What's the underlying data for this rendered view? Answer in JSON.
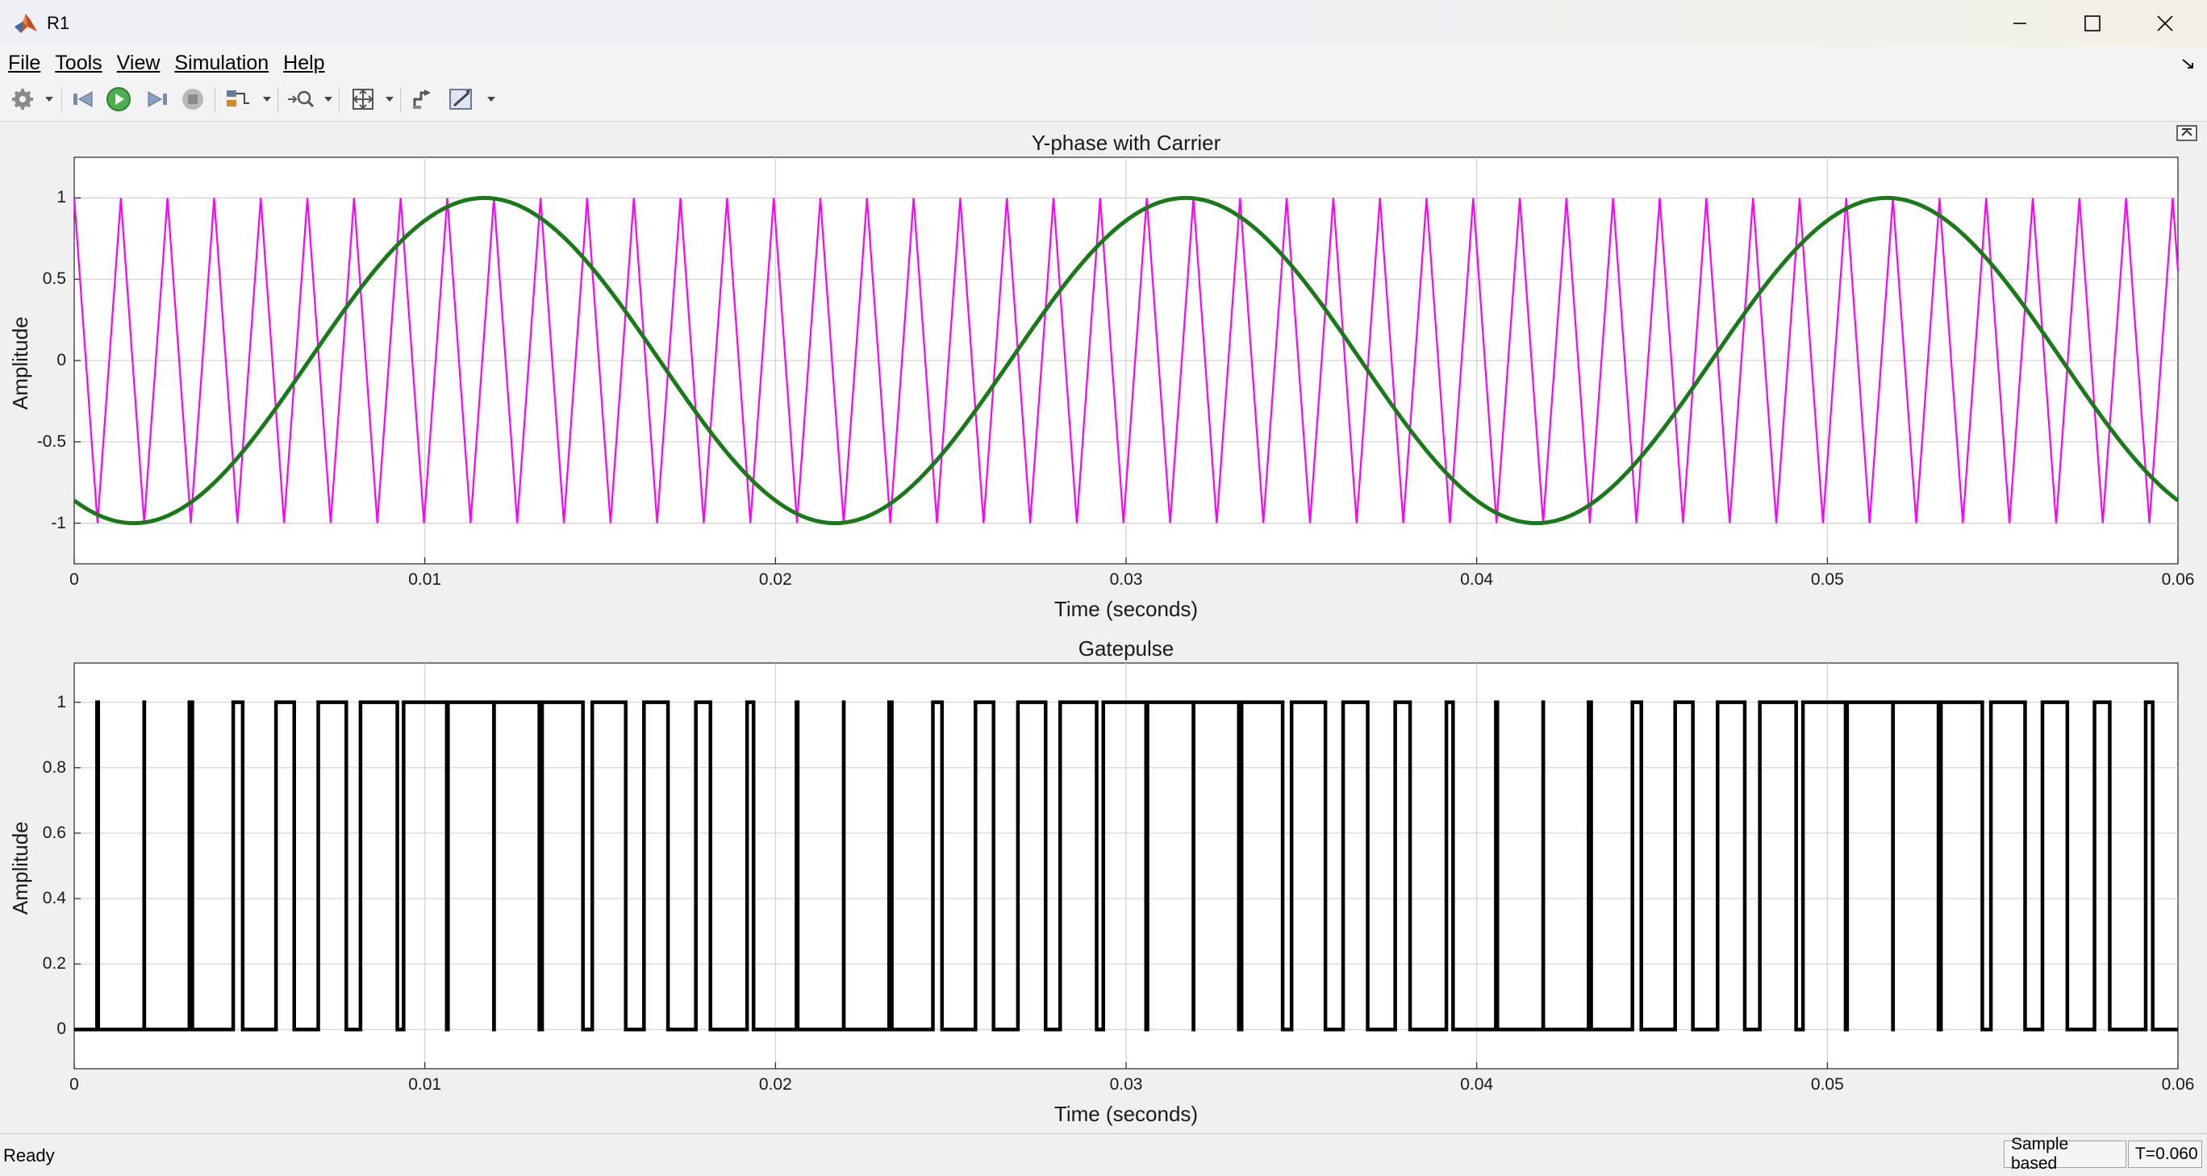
{
  "window": {
    "title": "R1"
  },
  "menu": [
    "File",
    "Tools",
    "View",
    "Simulation",
    "Help"
  ],
  "toolbar": {
    "icons": [
      "gear-icon",
      "step-back-icon",
      "run-icon",
      "step-forward-icon",
      "stop-icon",
      "signal-select-icon",
      "zoom-icon",
      "fit-axes-icon",
      "write-data-icon",
      "measure-icon"
    ]
  },
  "plots": [
    {
      "title": "Y-phase with Carrier",
      "xlabel": "Time (seconds)",
      "ylabel": "Amplitude",
      "xlim": [
        0,
        0.06
      ],
      "ylim": [
        -1.25,
        1.25
      ],
      "xticks": [
        "0",
        "0.01",
        "0.02",
        "0.03",
        "0.04",
        "0.05",
        "0.06"
      ],
      "yticks": [
        "1",
        "0.5",
        "0",
        "-0.5",
        "-1"
      ]
    },
    {
      "title": "Gatepulse",
      "xlabel": "Time (seconds)",
      "ylabel": "Amplitude",
      "xlim": [
        0,
        0.06
      ],
      "ylim": [
        -0.12,
        1.12
      ],
      "xticks": [
        "0",
        "0.01",
        "0.02",
        "0.03",
        "0.04",
        "0.05",
        "0.06"
      ],
      "yticks": [
        "1",
        "0.8",
        "0.6",
        "0.4",
        "0.2",
        "0"
      ]
    }
  ],
  "chart_data": [
    {
      "type": "line",
      "title": "Y-phase with Carrier",
      "xlabel": "Time (seconds)",
      "ylabel": "Amplitude",
      "xlim": [
        0,
        0.06
      ],
      "ylim": [
        -1.25,
        1.25
      ],
      "grid": true,
      "series": [
        {
          "color": "#1a7a1a",
          "kind": "sine",
          "amplitude": 1,
          "frequency_hz": 50,
          "peak_time": 0.0117,
          "samples_x": [
            0,
            0.0017,
            0.0117,
            0.0217,
            0.0317,
            0.0417,
            0.0517,
            0.06
          ],
          "samples_y": [
            -0.87,
            -1,
            1,
            -1,
            1,
            -1,
            1,
            -0.87
          ]
        },
        {
          "color": "#ff00ff",
          "kind": "triangle",
          "amplitude": 1,
          "period_s": 0.00133,
          "first_peak_s": 0
        }
      ]
    },
    {
      "type": "line",
      "title": "Gatepulse",
      "xlabel": "Time (seconds)",
      "ylabel": "Amplitude",
      "xlim": [
        0,
        0.06
      ],
      "ylim": [
        -0.12,
        1.12
      ],
      "grid": true,
      "series": [
        {
          "color": "#000000",
          "kind": "pwm",
          "description_values": [
            0,
            1
          ],
          "derived_from": "sine > triangle"
        }
      ]
    }
  ],
  "status": {
    "ready": "Ready",
    "mode": "Sample based",
    "time": "T=0.060"
  }
}
